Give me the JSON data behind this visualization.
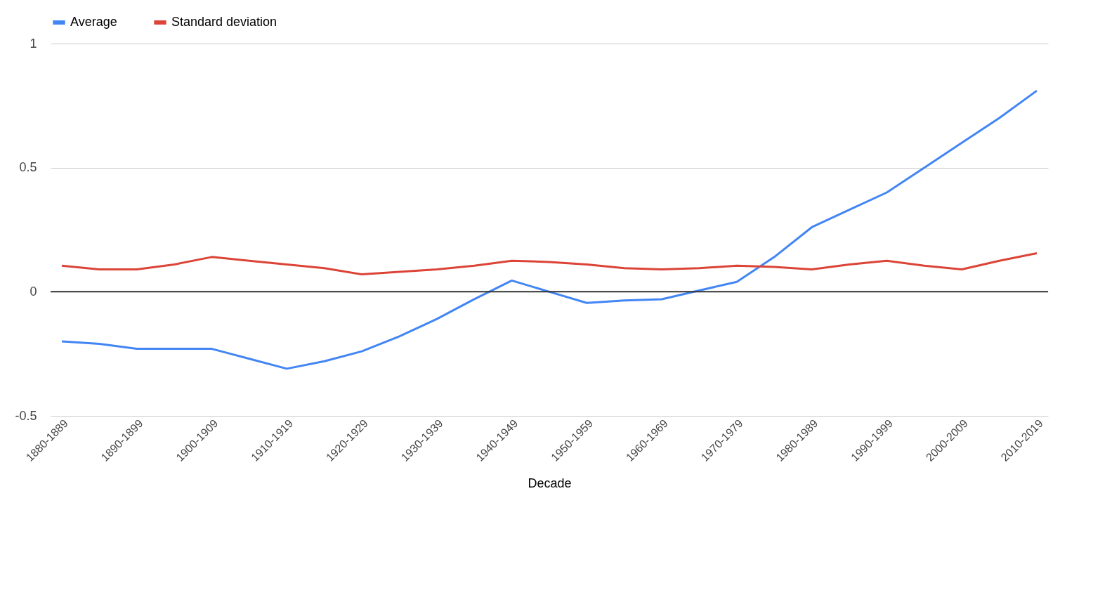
{
  "chart_data": {
    "type": "line",
    "xlabel": "Decade",
    "categories": [
      "1880-1889",
      null,
      "1890-1899",
      null,
      "1900-1909",
      null,
      "1910-1919",
      null,
      "1920-1929",
      null,
      "1930-1939",
      null,
      "1940-1949",
      null,
      "1950-1959",
      null,
      "1960-1969",
      null,
      "1970-1979",
      null,
      "1980-1989",
      null,
      "1990-1999",
      null,
      "2000-2009",
      null,
      "2010-2019"
    ],
    "series": [
      {
        "name": "Average",
        "color": "#4285f4",
        "values": [
          -0.2,
          -0.21,
          -0.23,
          -0.23,
          -0.23,
          -0.27,
          -0.31,
          -0.28,
          -0.24,
          -0.18,
          -0.11,
          -0.03,
          0.045,
          0.0,
          -0.045,
          -0.035,
          -0.03,
          0.005,
          0.04,
          0.14,
          0.26,
          0.33,
          0.4,
          0.5,
          0.6,
          0.7,
          0.81
        ]
      },
      {
        "name": "Standard deviation",
        "color": "#db4437",
        "values": [
          0.105,
          0.09,
          0.09,
          0.11,
          0.14,
          0.125,
          0.11,
          0.095,
          0.07,
          0.08,
          0.09,
          0.105,
          0.125,
          0.12,
          0.11,
          0.095,
          0.09,
          0.095,
          0.105,
          0.1,
          0.09,
          0.11,
          0.125,
          0.105,
          0.09,
          0.125,
          0.155
        ]
      }
    ],
    "ylim": [
      -0.5,
      1
    ],
    "yticks": [
      -0.5,
      0,
      0.5,
      1
    ],
    "grid": "y",
    "legend": "top",
    "marker": "none",
    "line_style": "solid",
    "ref_lines": [
      {
        "axis": "y",
        "value": 0,
        "color": "#333333"
      }
    ]
  }
}
